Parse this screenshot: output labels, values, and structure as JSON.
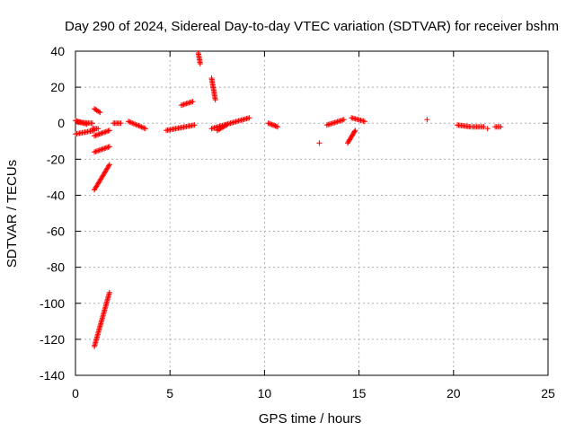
{
  "chart_data": {
    "type": "scatter",
    "title": "Day 290 of 2024, Sidereal Day-to-day VTEC variation (SDTVAR) for receiver bshm",
    "xlabel": "GPS time / hours",
    "ylabel": "SDTVAR / TECUs",
    "xlim": [
      0,
      25
    ],
    "ylim": [
      -140,
      40
    ],
    "xticks": [
      0,
      5,
      10,
      15,
      20,
      25
    ],
    "yticks": [
      -140,
      -120,
      -100,
      -80,
      -60,
      -40,
      -20,
      0,
      20,
      40
    ],
    "grid": true,
    "marker": "+",
    "color": "#ff0000",
    "segments": [
      {
        "x": [
          0.0,
          1.0
        ],
        "y": [
          -6,
          -4
        ]
      },
      {
        "x": [
          0.0,
          0.6
        ],
        "y": [
          1.5,
          -0.5
        ]
      },
      {
        "x": [
          0.1,
          0.9
        ],
        "y": [
          0.5,
          0.0
        ]
      },
      {
        "x": [
          0.9,
          1.2
        ],
        "y": [
          -3,
          -3
        ]
      },
      {
        "x": [
          1.0,
          1.8
        ],
        "y": [
          -37,
          -23
        ]
      },
      {
        "x": [
          1.0,
          1.8
        ],
        "y": [
          -124,
          -94
        ]
      },
      {
        "x": [
          1.0,
          1.8
        ],
        "y": [
          -16,
          -13
        ]
      },
      {
        "x": [
          1.0,
          1.8
        ],
        "y": [
          -7,
          -4
        ]
      },
      {
        "x": [
          1.0,
          1.3
        ],
        "y": [
          8,
          6
        ]
      },
      {
        "x": [
          2.0,
          2.4
        ],
        "y": [
          0,
          0
        ]
      },
      {
        "x": [
          2.8,
          3.7
        ],
        "y": [
          1,
          -3
        ]
      },
      {
        "x": [
          4.8,
          6.3
        ],
        "y": [
          -4,
          -1
        ]
      },
      {
        "x": [
          5.6,
          6.2
        ],
        "y": [
          10,
          12
        ]
      },
      {
        "x": [
          6.5,
          6.6
        ],
        "y": [
          39,
          33
        ]
      },
      {
        "x": [
          7.2,
          7.4
        ],
        "y": [
          25,
          13
        ]
      },
      {
        "x": [
          7.2,
          9.2
        ],
        "y": [
          -3,
          3
        ]
      },
      {
        "x": [
          7.5,
          8.0
        ],
        "y": [
          -4,
          -1
        ]
      },
      {
        "x": [
          10.2,
          10.7
        ],
        "y": [
          0,
          -2
        ]
      },
      {
        "x": [
          13.3,
          14.2
        ],
        "y": [
          -1,
          2
        ]
      },
      {
        "x": [
          14.4,
          14.8
        ],
        "y": [
          -11,
          -4
        ]
      },
      {
        "x": [
          14.6,
          15.3
        ],
        "y": [
          3,
          1
        ]
      },
      {
        "x": [
          20.2,
          20.9
        ],
        "y": [
          -1,
          -2
        ]
      },
      {
        "x": [
          21.0,
          21.6
        ],
        "y": [
          -2,
          -2
        ]
      },
      {
        "x": [
          22.2,
          22.5
        ],
        "y": [
          -2,
          -2
        ]
      }
    ],
    "points": [
      {
        "x": 12.9,
        "y": -11
      },
      {
        "x": 18.6,
        "y": 2
      },
      {
        "x": 21.8,
        "y": -3
      }
    ]
  }
}
